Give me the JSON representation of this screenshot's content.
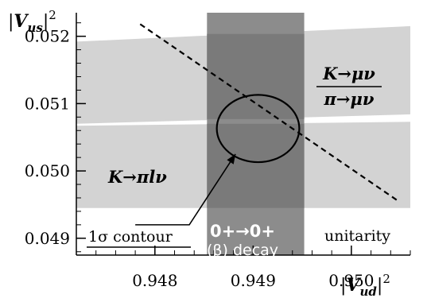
{
  "chart_data": {
    "type": "area",
    "xlabel": "|V_ud|^2",
    "ylabel": "|V_us|^2",
    "xlim": [
      0.9472,
      0.9506
    ],
    "ylim": [
      0.04875,
      0.05235
    ],
    "xticks": [
      {
        "value": 0.948,
        "label": "0.948"
      },
      {
        "value": 0.949,
        "label": "0.949"
      },
      {
        "value": 0.95,
        "label": "0.950"
      }
    ],
    "yticks": [
      {
        "value": 0.049,
        "label": "0.049"
      },
      {
        "value": 0.05,
        "label": "0.050"
      },
      {
        "value": 0.051,
        "label": "0.051"
      },
      {
        "value": 0.052,
        "label": "0.052"
      }
    ],
    "grid": false,
    "colors": {
      "light_band": "#d3d3d3",
      "vertical_band": "#8c8c8c",
      "vertical_band_overlap": "#7a7a7a",
      "line": "#000000",
      "background": "#ffffff"
    },
    "bands": [
      {
        "name": "K→μν / π→μν",
        "orientation": "sloped",
        "lower": [
          [
            0.9472,
            0.0507
          ],
          [
            0.9506,
            0.05084
          ]
        ],
        "upper": [
          [
            0.9472,
            0.05192
          ],
          [
            0.9506,
            0.05215
          ]
        ]
      },
      {
        "name": "K→πlν",
        "orientation": "sloped",
        "lower": [
          [
            0.9472,
            0.04945
          ],
          [
            0.9506,
            0.04945
          ]
        ],
        "upper": [
          [
            0.9472,
            0.05067
          ],
          [
            0.9506,
            0.05073
          ]
        ]
      },
      {
        "name": "0+→0+ (β) decay",
        "orientation": "vertical",
        "x_range": [
          0.94853,
          0.94952
        ]
      }
    ],
    "unitarity_line": {
      "x": [
        0.94785,
        0.95047
      ],
      "y": [
        0.05218,
        0.04956
      ]
    },
    "ellipse": {
      "center": [
        0.94905,
        0.05063
      ],
      "semi_x": 0.00042,
      "semi_y": 0.0005
    },
    "contour_arrow": {
      "tail": [
        0.9478,
        0.0492
      ],
      "elbow": [
        0.94835,
        0.0492
      ],
      "head": [
        0.94882,
        0.05025
      ]
    },
    "annotations": {
      "k_mu_num": "K→μν",
      "k_mu_den": "π→μν",
      "k_pi": "K→πlν",
      "sigma_contour": "1σ contour",
      "unitarity": "unitarity",
      "beta_line1": "0+→0+",
      "beta_line2": "(β) decay"
    }
  }
}
